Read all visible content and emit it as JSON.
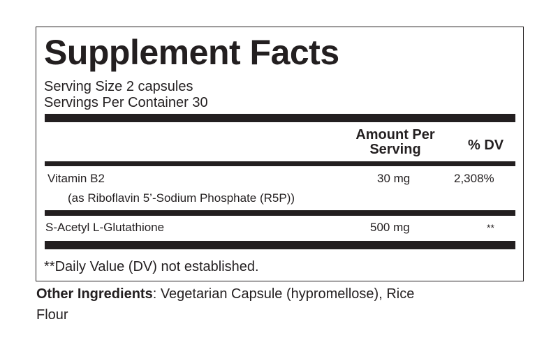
{
  "title": "Supplement Facts",
  "serving_size": "Serving Size 2 capsules",
  "servings_per_container": "Servings Per Container 30",
  "header": {
    "amount_line1": "Amount Per",
    "amount_line2": "Serving",
    "dv": "% DV"
  },
  "rows": [
    {
      "name": "Vitamin B2",
      "sub": "(as Riboflavin 5’-Sodium Phosphate (R5P))",
      "amount": "30 mg",
      "dv": "2,308%"
    },
    {
      "name": "S-Acetyl L-Glutathione",
      "amount": "500 mg",
      "dv": "**"
    }
  ],
  "footnote": "**Daily Value (DV) not established.",
  "other_ingredients": {
    "label": "Other Ingredients",
    "text": ": Vegetarian Capsule (hypromellose), Rice",
    "text2": "Flour"
  }
}
